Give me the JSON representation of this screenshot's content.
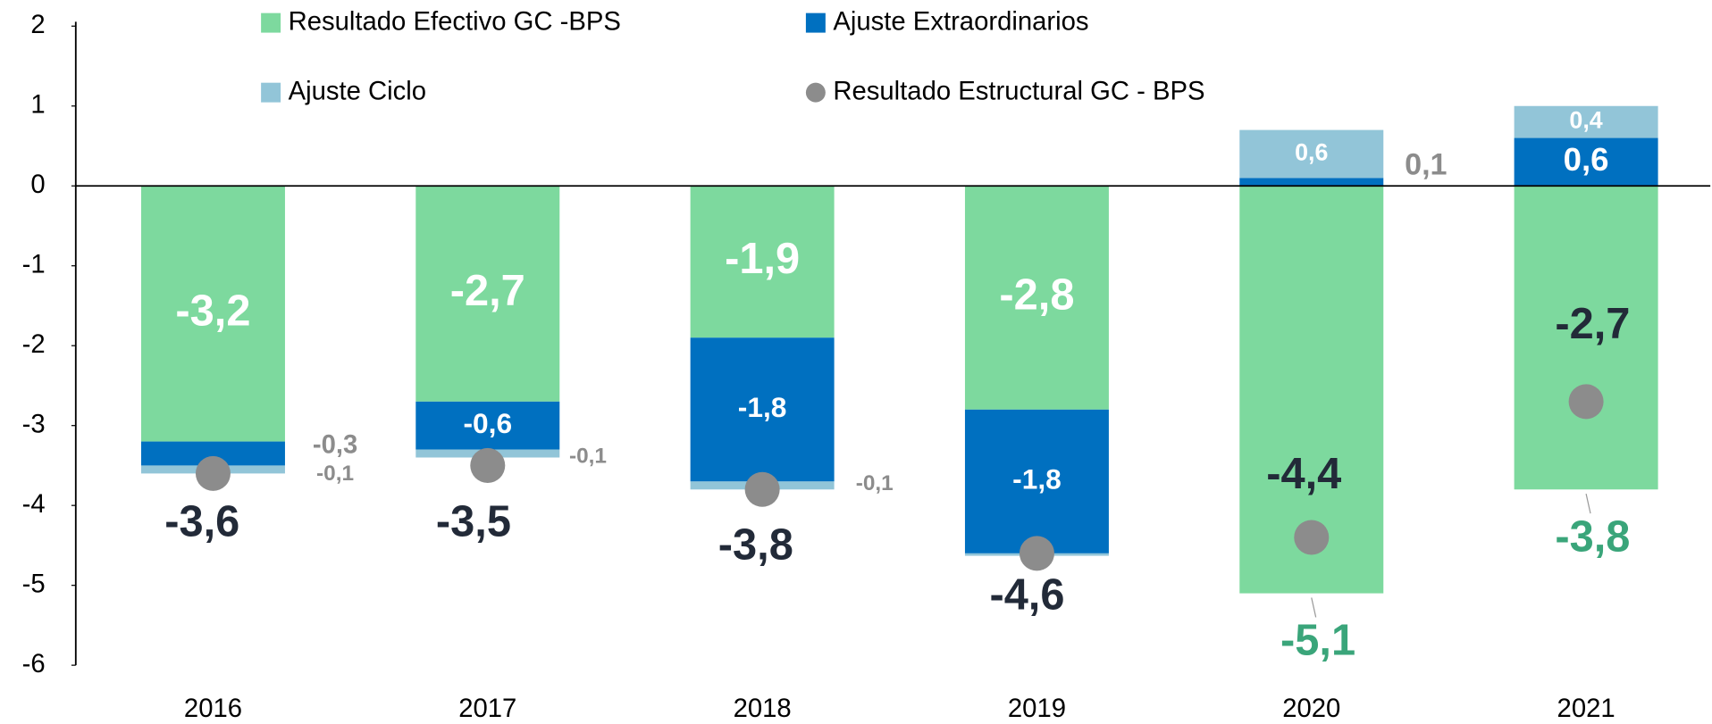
{
  "chart_data": {
    "type": "bar",
    "stacked": true,
    "categories": [
      "2016",
      "2017",
      "2018",
      "2019",
      "2020",
      "2021"
    ],
    "series": [
      {
        "name": "Resultado Efectivo GC -BPS",
        "color": "#7dd99e",
        "values": [
          -3.2,
          -2.7,
          -1.9,
          -2.8,
          -5.1,
          -3.8
        ],
        "value_labels": [
          "-3,2",
          "-2,7",
          "-1,9",
          "-2,8",
          "-5,1",
          "-3,8"
        ]
      },
      {
        "name": "Ajuste Extraordinarios",
        "color": "#0070c0",
        "values": [
          -0.3,
          -0.6,
          -1.8,
          -1.8,
          0.1,
          0.6
        ],
        "value_labels": [
          "-0,3",
          "-0,6",
          "-1,8",
          "-1,8",
          "0,1",
          "0,6"
        ]
      },
      {
        "name": "Ajuste Ciclo",
        "color": "#92c5d8",
        "values": [
          -0.1,
          -0.1,
          -0.1,
          -0.03,
          0.6,
          0.4
        ],
        "value_labels": [
          "-0,1",
          "-0,1",
          "-0,1",
          null,
          "0,6",
          "0,4"
        ]
      },
      {
        "name": "Resultado Estructural GC - BPS",
        "type": "scatter",
        "color": "#8c8c8c",
        "values": [
          -3.6,
          -3.5,
          -3.8,
          -4.6,
          -4.4,
          -2.7
        ],
        "value_labels": [
          "-3,6",
          "-3,5",
          "-3,8",
          "-4,6",
          "-4,4",
          "-2,7"
        ]
      }
    ],
    "ylim": [
      -6,
      2
    ],
    "yticks": [
      -6,
      -5,
      -4,
      -3,
      -2,
      -1,
      0,
      1,
      2
    ],
    "grid": false
  }
}
